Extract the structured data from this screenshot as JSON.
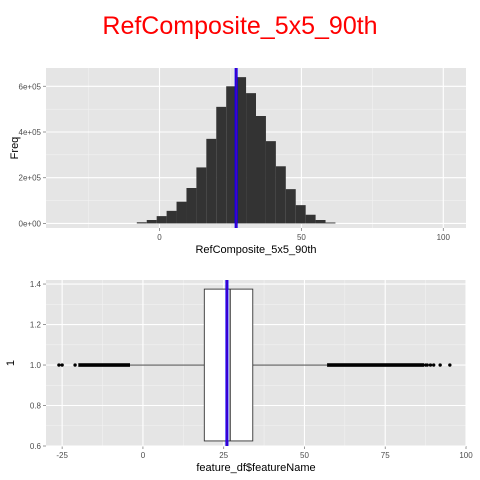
{
  "title": "RefComposite_5x5_90th",
  "colors": {
    "title": "#ff0000",
    "panel_background": "#e5e5e5",
    "grid": "#ffffff",
    "bars": "#333333",
    "marker_line": "#0000ff",
    "marker_line_overlay": "#8b008b",
    "box_fill": "#ffffff",
    "box_stroke": "#333333",
    "outliers": "#000000"
  },
  "chart_data": [
    {
      "type": "bar",
      "subtype": "histogram",
      "xlabel": "RefComposite_5x5_90th",
      "ylabel": "Freq",
      "xlim": [
        -40,
        108
      ],
      "ylim": [
        -20000,
        680000
      ],
      "x_ticks": [
        0,
        50,
        100
      ],
      "x_tick_labels": [
        "0",
        "50",
        "100"
      ],
      "y_ticks": [
        0,
        200000,
        400000,
        600000
      ],
      "y_tick_labels": [
        "0e+00",
        "2e+05",
        "4e+05",
        "6e+05"
      ],
      "grid": true,
      "bin_width": 3.5,
      "bin_starts": [
        -8,
        -4.5,
        -1,
        2.5,
        6,
        9.5,
        13,
        16.5,
        20,
        23.5,
        27,
        30.5,
        34,
        37.5,
        41,
        44.5,
        48,
        51.5,
        55,
        58.5
      ],
      "values": [
        5000,
        15000,
        32000,
        55000,
        95000,
        155000,
        245000,
        370000,
        510000,
        600000,
        640000,
        570000,
        470000,
        360000,
        250000,
        150000,
        80000,
        38000,
        15000,
        4000
      ],
      "marker_line_x": 27
    },
    {
      "type": "boxplot",
      "orientation": "horizontal",
      "xlabel": "feature_df$featureName",
      "ylabel": "1",
      "xlim": [
        -30,
        100
      ],
      "ylim": [
        0.6,
        1.42
      ],
      "x_ticks": [
        -25,
        0,
        25,
        50,
        75,
        100
      ],
      "x_tick_labels": [
        "-25",
        "0",
        "25",
        "50",
        "75",
        "100"
      ],
      "y_ticks": [
        0.6,
        0.8,
        1.0,
        1.2,
        1.4
      ],
      "y_tick_labels": [
        "0.6",
        "0.8",
        "1.0",
        "1.2",
        "1.4"
      ],
      "grid": true,
      "box": {
        "y": 1.0,
        "q1": 19,
        "median": 27,
        "q3": 34,
        "whisker_low": -4,
        "whisker_high": 57,
        "half_height": 0.375
      },
      "marker_line_x": 26,
      "outliers_dense_low": [
        -20,
        -4
      ],
      "outliers_dense_high": [
        57,
        87
      ],
      "outliers_sparse": [
        -26,
        -25,
        -21,
        87.5,
        88,
        89,
        90,
        92,
        95
      ]
    }
  ]
}
